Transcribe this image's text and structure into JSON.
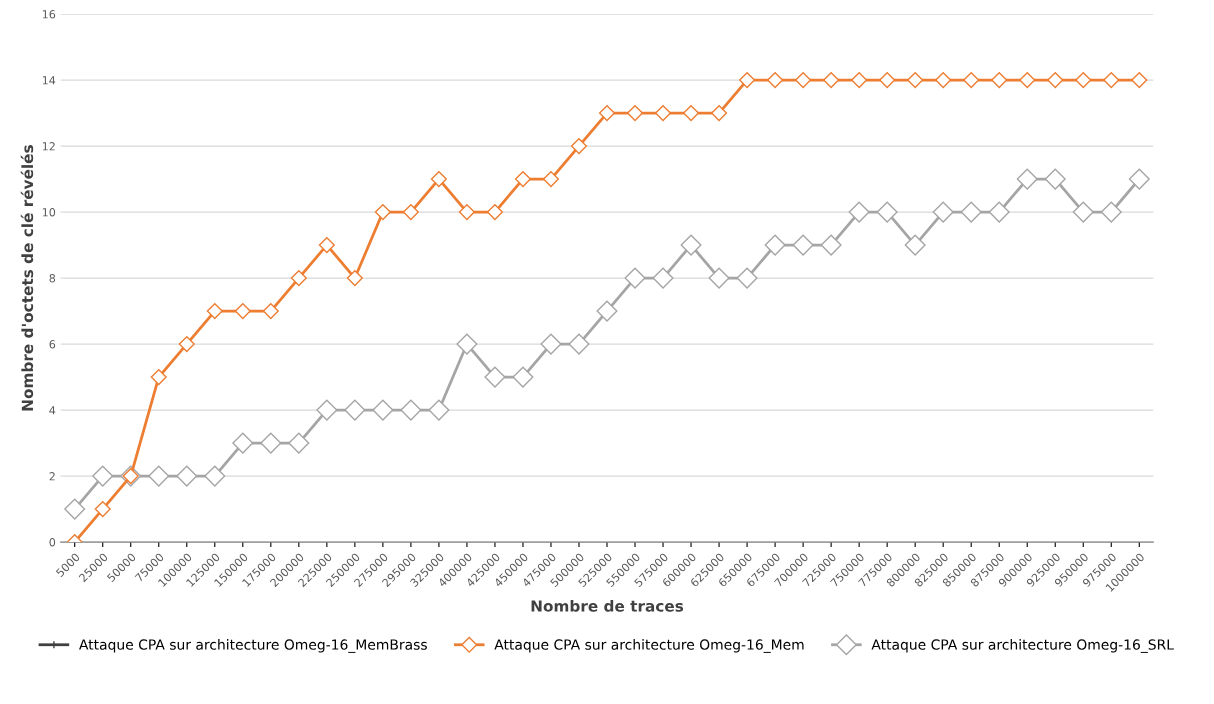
{
  "chart_data": {
    "type": "line",
    "xlabel": "Nombre de traces",
    "ylabel": "Nombre d'octets de clé révélés",
    "categories": [
      "5000",
      "25000",
      "50000",
      "75000",
      "100000",
      "125000",
      "150000",
      "175000",
      "200000",
      "225000",
      "250000",
      "275000",
      "295000",
      "325000",
      "400000",
      "425000",
      "450000",
      "475000",
      "500000",
      "525000",
      "550000",
      "575000",
      "600000",
      "625000",
      "650000",
      "675000",
      "700000",
      "725000",
      "750000",
      "775000",
      "800000",
      "825000",
      "850000",
      "875000",
      "900000",
      "925000",
      "950000",
      "975000",
      "1000000"
    ],
    "series": [
      {
        "name": "Attaque CPA sur architecture Omeg-16_MemBrass",
        "color": "#404040",
        "marker": "cross",
        "values": [
          null,
          null,
          null,
          null,
          null,
          null,
          null,
          null,
          null,
          null,
          null,
          null,
          null,
          null,
          null,
          null,
          null,
          null,
          null,
          null,
          null,
          null,
          null,
          null,
          null,
          null,
          null,
          null,
          null,
          null,
          null,
          null,
          null,
          null,
          null,
          null,
          null,
          null,
          null
        ]
      },
      {
        "name": "Attaque CPA sur architecture Omeg-16_Mem",
        "color": "#ed7d31",
        "marker": "diamond",
        "values": [
          0,
          1,
          2,
          5,
          6,
          7,
          7,
          7,
          8,
          9,
          8,
          10,
          10,
          11,
          10,
          10,
          11,
          11,
          12,
          13,
          13,
          13,
          13,
          13,
          14,
          14,
          14,
          14,
          14,
          14,
          14,
          14,
          14,
          14,
          14,
          14,
          14,
          14,
          14
        ]
      },
      {
        "name": "Attaque CPA sur architecture Omeg-16_SRL",
        "color": "#a5a5a5",
        "marker": "diamond",
        "values": [
          1,
          2,
          2,
          2,
          2,
          2,
          3,
          3,
          3,
          4,
          4,
          4,
          4,
          4,
          6,
          5,
          5,
          6,
          6,
          7,
          8,
          8,
          9,
          8,
          8,
          9,
          9,
          9,
          10,
          10,
          9,
          10,
          10,
          10,
          11,
          11,
          10,
          10,
          11
        ]
      }
    ],
    "ylim": [
      0,
      16
    ],
    "yticks": [
      0,
      2,
      4,
      6,
      8,
      10,
      12,
      14,
      16
    ],
    "grid": "y",
    "legend": "bottom",
    "line_style": "solid"
  }
}
